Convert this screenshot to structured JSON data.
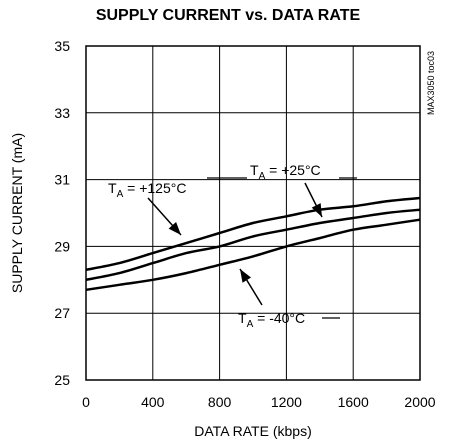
{
  "chart_data": {
    "type": "line",
    "title": "SUPPLY CURRENT vs. DATA RATE",
    "xlabel": "DATA RATE (kbps)",
    "ylabel": "SUPPLY CURRENT (mA)",
    "xlim": [
      0,
      2000
    ],
    "ylim": [
      25,
      35
    ],
    "xticks": [
      0,
      400,
      800,
      1200,
      1600,
      2000
    ],
    "yticks": [
      25,
      27,
      29,
      31,
      33,
      35
    ],
    "grid": true,
    "side_label": "MAX3050 toc03",
    "series": [
      {
        "name": "TA = +125°C",
        "x": [
          0,
          200,
          400,
          600,
          800,
          1000,
          1200,
          1400,
          1600,
          1800,
          2000
        ],
        "y": [
          28.3,
          28.5,
          28.8,
          29.1,
          29.4,
          29.7,
          29.9,
          30.1,
          30.2,
          30.35,
          30.45
        ]
      },
      {
        "name": "TA = +25°C",
        "x": [
          0,
          200,
          400,
          600,
          800,
          1000,
          1200,
          1400,
          1600,
          1800,
          2000
        ],
        "y": [
          28.0,
          28.2,
          28.5,
          28.8,
          29.0,
          29.3,
          29.5,
          29.7,
          29.85,
          30.0,
          30.1
        ]
      },
      {
        "name": "TA = -40°C",
        "x": [
          0,
          200,
          400,
          600,
          800,
          1000,
          1200,
          1400,
          1600,
          1800,
          2000
        ],
        "y": [
          27.7,
          27.85,
          28.0,
          28.2,
          28.45,
          28.7,
          29.0,
          29.25,
          29.5,
          29.65,
          29.8
        ]
      }
    ],
    "annotations": [
      {
        "series": 0,
        "sym": "T",
        "sub": "A",
        "rest": " = +125°C"
      },
      {
        "series": 1,
        "sym": "T",
        "sub": "A",
        "rest": " = +25°C"
      },
      {
        "series": 2,
        "sym": "T",
        "sub": "A",
        "rest": " = -40°C"
      }
    ]
  }
}
